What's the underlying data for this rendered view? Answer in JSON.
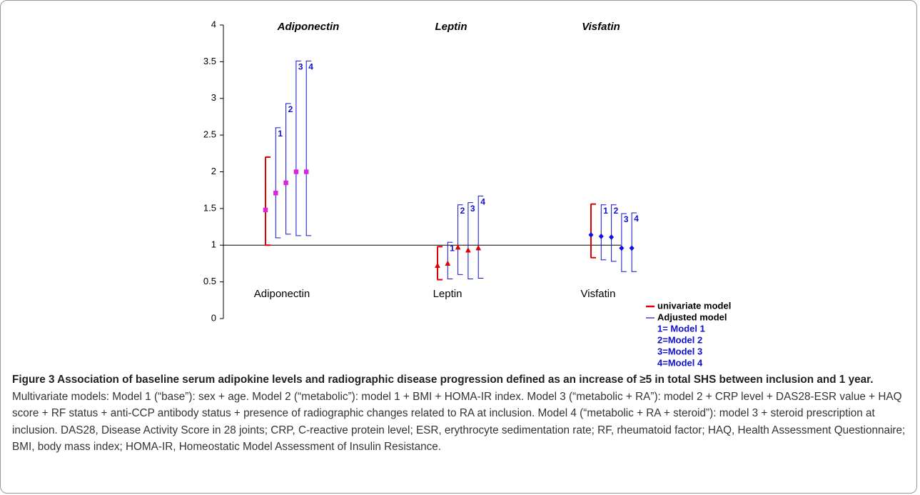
{
  "chart_data": {
    "type": "errorbar",
    "group_titles": [
      "Adiponectin",
      "Leptin",
      "Visfatin"
    ],
    "categories": [
      "Adiponectin",
      "Leptin",
      "Visfatin"
    ],
    "markers": [
      {
        "shape": "square",
        "color": "#e020e0"
      },
      {
        "shape": "triangle",
        "color": "#e00000"
      },
      {
        "shape": "diamond",
        "color": "#1010e0"
      }
    ],
    "series": [
      {
        "name": "univariate model",
        "color": "#e00000",
        "values": [
          1.48,
          0.72,
          1.14
        ],
        "lower": [
          1.0,
          0.53,
          0.83
        ],
        "upper": [
          2.2,
          0.98,
          1.56
        ]
      },
      {
        "name": "1= Model 1",
        "bar_label": "1",
        "color": "#1010d0",
        "values": [
          1.71,
          0.75,
          1.12
        ],
        "lower": [
          1.1,
          0.54,
          0.8
        ],
        "upper": [
          2.6,
          1.04,
          1.55
        ]
      },
      {
        "name": "2=Model 2",
        "bar_label": "2",
        "color": "#1010d0",
        "values": [
          1.85,
          0.97,
          1.11
        ],
        "lower": [
          1.15,
          0.6,
          0.78
        ],
        "upper": [
          2.93,
          1.55,
          1.55
        ]
      },
      {
        "name": "3=Model 3",
        "bar_label": "3",
        "color": "#1010d0",
        "values": [
          2.0,
          0.93,
          0.96
        ],
        "lower": [
          1.13,
          0.54,
          0.64
        ],
        "upper": [
          3.51,
          1.58,
          1.43
        ]
      },
      {
        "name": "4=Model 4",
        "bar_label": "4",
        "color": "#1010d0",
        "values": [
          2.0,
          0.96,
          0.96
        ],
        "lower": [
          1.13,
          0.55,
          0.64
        ],
        "upper": [
          3.51,
          1.67,
          1.44
        ]
      }
    ],
    "legend_group": "Adjusted model",
    "reference_line": 1,
    "ylim": [
      0,
      4
    ],
    "yticks": [
      0,
      0.5,
      1,
      1.5,
      2,
      2.5,
      3,
      3.5,
      4
    ]
  },
  "caption": {
    "title": "Figure 3 Association of baseline serum adipokine levels and radiographic disease progression defined as an increase of ≥5 in total SHS between inclusion and 1 year.",
    "text": "Multivariate models: Model 1 (“base”): sex + age. Model 2 (“metabolic”): model 1 + BMI + HOMA-IR index. Model 3 (“metabolic + RA”): model 2 + CRP level + DAS28-ESR value + HAQ score + RF status + anti-CCP antibody status + presence of radiographic changes related to RA at inclusion. Model 4 (“metabolic + RA + steroid”): model 3 + steroid prescription at inclusion. DAS28, Disease Activity Score in 28 joints; CRP, C-reactive protein level; ESR, erythrocyte sedimentation rate; RF, rheumatoid factor; HAQ, Health Assessment Questionnaire; BMI, body mass index; HOMA-IR, Homeostatic Model Assessment of Insulin Resistance."
  }
}
